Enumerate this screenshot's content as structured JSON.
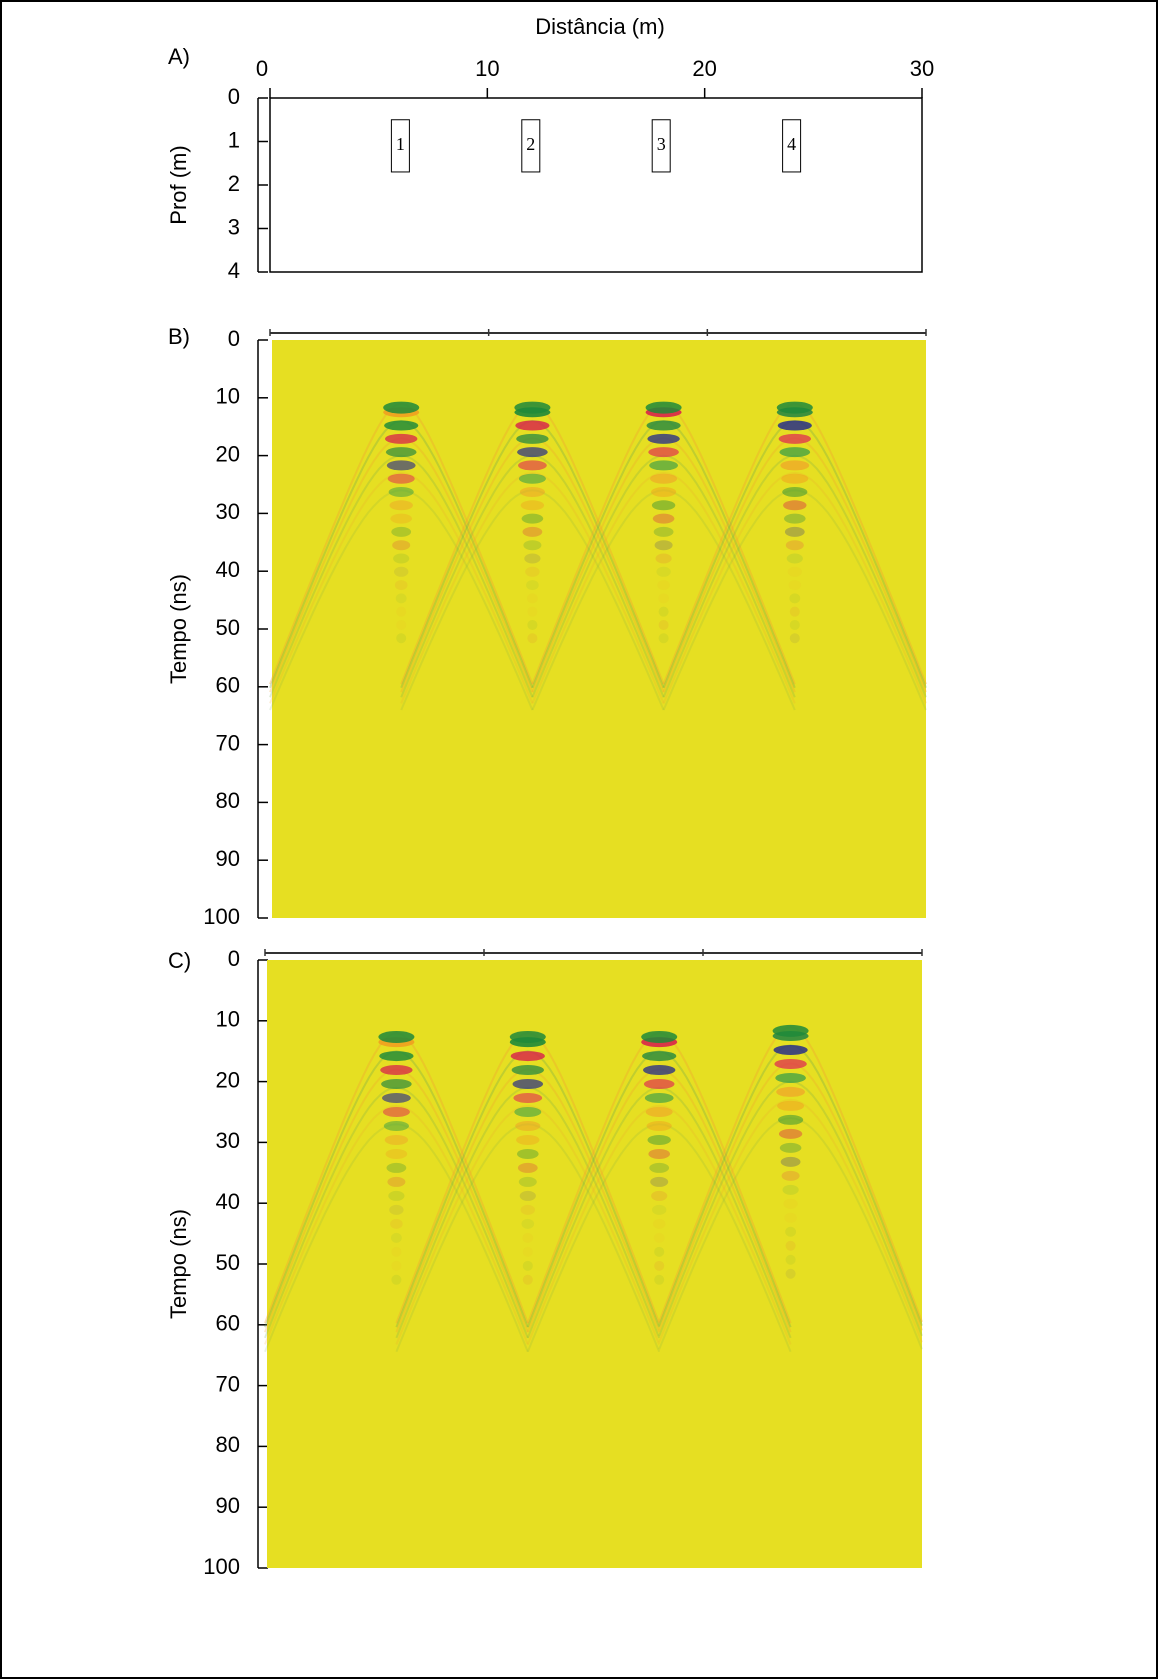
{
  "chart_data": [
    {
      "type": "section",
      "panel_label": "A)",
      "title": "Distância (m)",
      "y_label": "Prof (m)",
      "xlim": [
        0,
        30
      ],
      "xticks": [
        0,
        10,
        20,
        30
      ],
      "ylim": [
        0,
        4
      ],
      "yticks": [
        0,
        1,
        2,
        3,
        4
      ],
      "objects": [
        {
          "label": "1",
          "x": 6,
          "top": 0.5,
          "bottom": 1.7
        },
        {
          "label": "2",
          "x": 12,
          "top": 0.5,
          "bottom": 1.7
        },
        {
          "label": "3",
          "x": 18,
          "top": 0.5,
          "bottom": 1.7
        },
        {
          "label": "4",
          "x": 24,
          "top": 0.5,
          "bottom": 1.7
        }
      ]
    },
    {
      "type": "radargram",
      "panel_label": "B)",
      "y_label": "Tempo (ns)",
      "xlim": [
        0,
        30
      ],
      "xticks": [
        0,
        10,
        20,
        30
      ],
      "ylim": [
        0,
        100
      ],
      "yticks": [
        0,
        10,
        20,
        30,
        40,
        50,
        60,
        70,
        80,
        90,
        100
      ],
      "targets": [
        {
          "x": 6,
          "t": 11
        },
        {
          "x": 12,
          "t": 11
        },
        {
          "x": 18,
          "t": 11
        },
        {
          "x": 24,
          "t": 11
        }
      ]
    },
    {
      "type": "radargram",
      "panel_label": "C)",
      "y_label": "Tempo (ns)",
      "xlim": [
        0,
        30
      ],
      "xticks": [
        0,
        10,
        20,
        30
      ],
      "ylim": [
        0,
        100
      ],
      "yticks": [
        0,
        10,
        20,
        30,
        40,
        50,
        60,
        70,
        80,
        90,
        100
      ],
      "targets": [
        {
          "x": 6,
          "t": 12
        },
        {
          "x": 12,
          "t": 12
        },
        {
          "x": 18,
          "t": 12
        },
        {
          "x": 24,
          "t": 11
        }
      ]
    }
  ]
}
